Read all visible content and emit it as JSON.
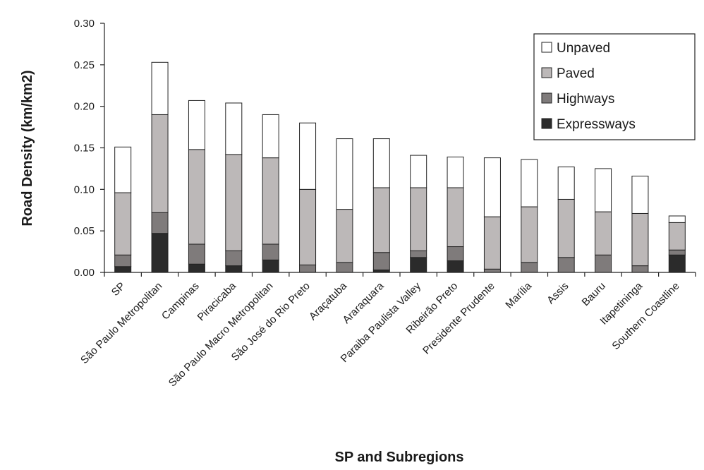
{
  "chart_data": {
    "type": "bar",
    "stacked": true,
    "xlabel": "SP and Subregions",
    "ylabel": "Road Density (km/km2)",
    "ylim": [
      0,
      0.3
    ],
    "yticks": [
      "0.00",
      "0.05",
      "0.10",
      "0.15",
      "0.20",
      "0.25",
      "0.30"
    ],
    "grid": false,
    "legend_position": "top-right",
    "categories": [
      "SP",
      "São Paulo Metropolitan",
      "Campinas",
      "Piracicaba",
      "São Paulo Macro Metropolitan",
      "São José do Rio Preto",
      "Araçatuba",
      "Araraquara",
      "Paraiba Paulista Valley",
      "Ribeirão Preto",
      "Presidente Prudente",
      "Marília",
      "Assis",
      "Bauru",
      "Itapetininga",
      "Southern Coastline"
    ],
    "series": [
      {
        "name": "Expressways",
        "color": "#2b2b2b",
        "values": [
          0.007,
          0.047,
          0.01,
          0.008,
          0.015,
          0.0,
          0.0,
          0.003,
          0.018,
          0.014,
          0.0,
          0.0,
          0.0,
          0.0,
          0.0,
          0.021
        ]
      },
      {
        "name": "Highways",
        "color": "#7f7b7b",
        "values": [
          0.014,
          0.025,
          0.024,
          0.018,
          0.019,
          0.009,
          0.012,
          0.021,
          0.008,
          0.017,
          0.004,
          0.012,
          0.018,
          0.021,
          0.008,
          0.006
        ]
      },
      {
        "name": "Paved",
        "color": "#bcb8b8",
        "values": [
          0.075,
          0.118,
          0.114,
          0.116,
          0.104,
          0.091,
          0.064,
          0.078,
          0.076,
          0.071,
          0.063,
          0.067,
          0.07,
          0.052,
          0.063,
          0.033
        ]
      },
      {
        "name": "Unpaved",
        "color": "#ffffff",
        "values": [
          0.055,
          0.063,
          0.059,
          0.062,
          0.052,
          0.08,
          0.085,
          0.059,
          0.039,
          0.037,
          0.071,
          0.057,
          0.039,
          0.052,
          0.045,
          0.008
        ]
      }
    ],
    "legend_order": [
      "Unpaved",
      "Paved",
      "Highways",
      "Expressways"
    ]
  }
}
